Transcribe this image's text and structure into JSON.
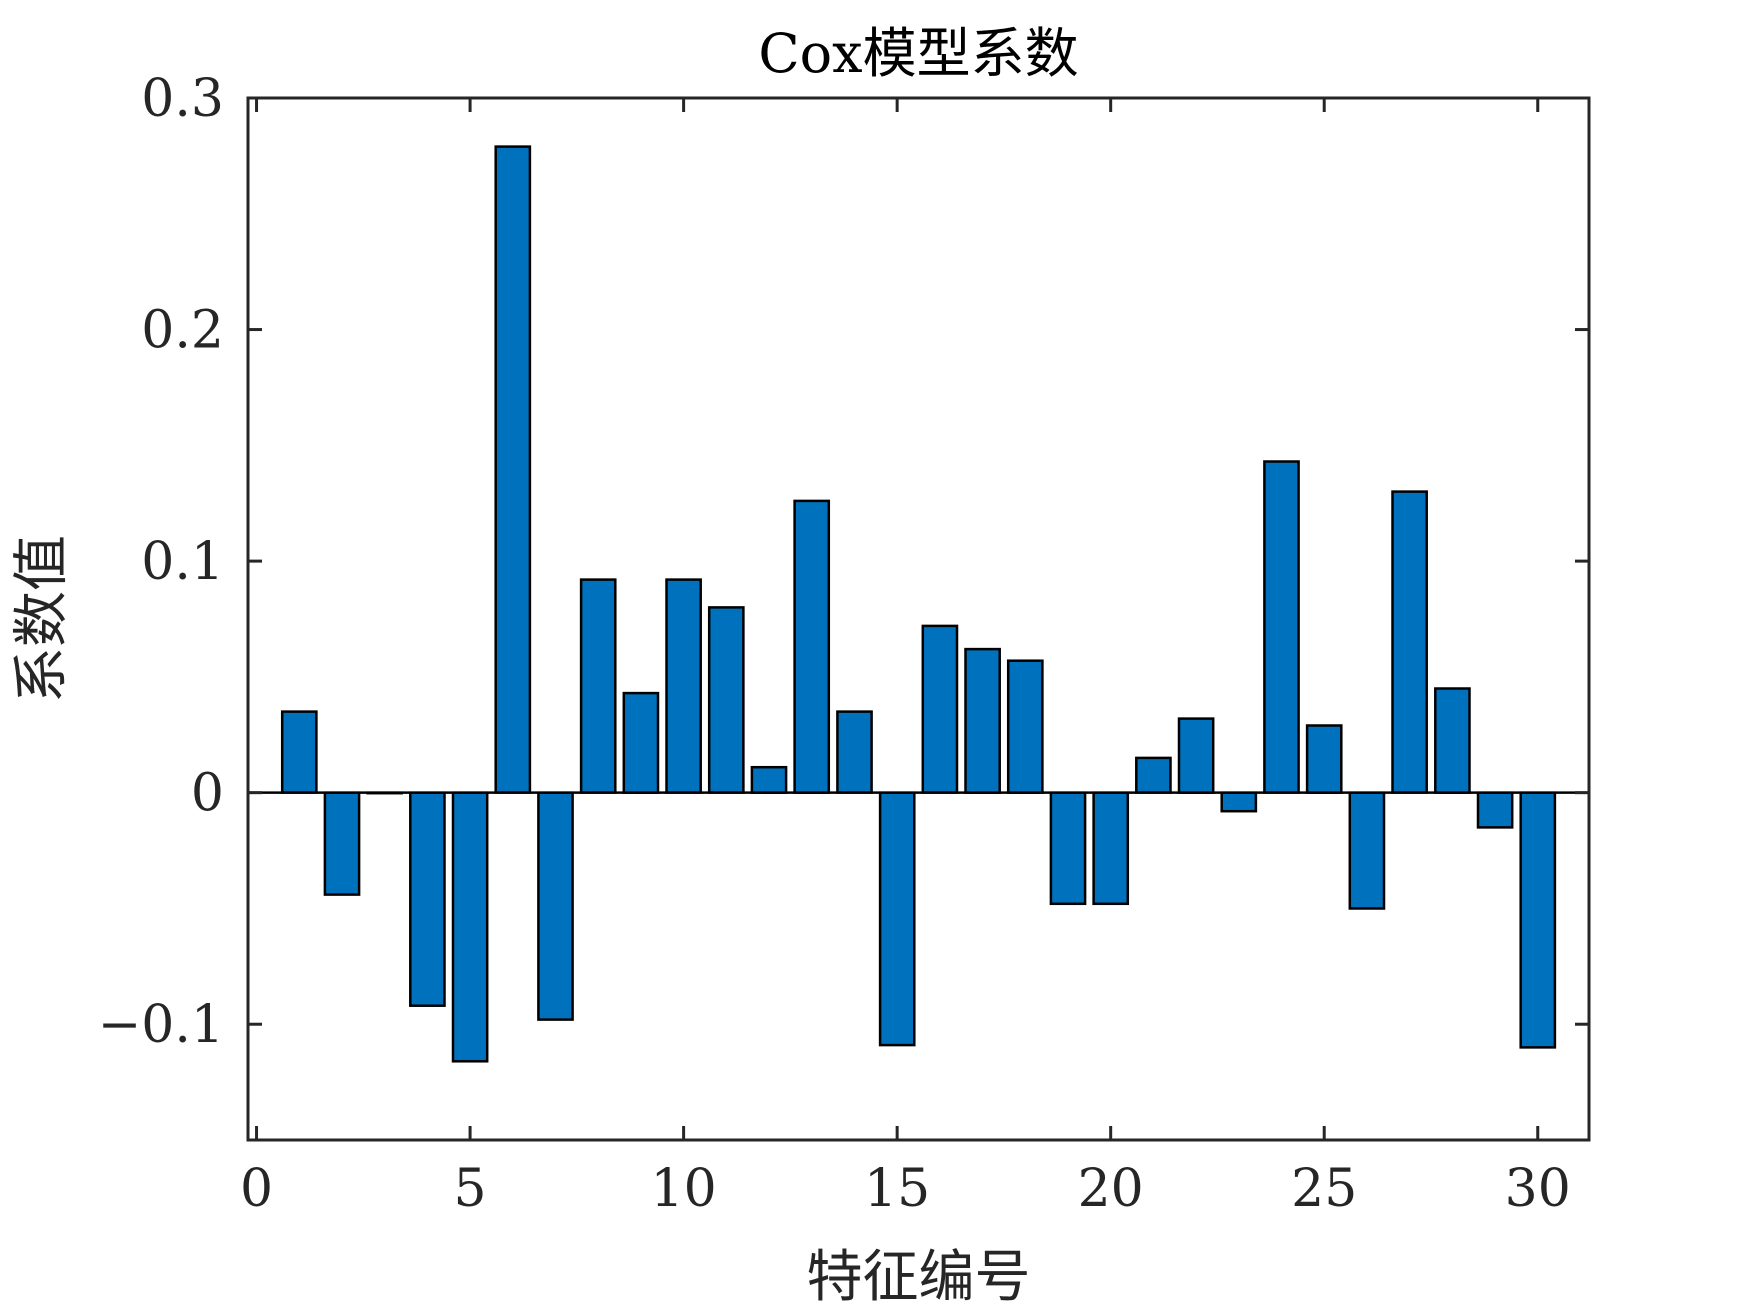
{
  "chart_data": {
    "type": "bar",
    "title": "Cox模型系数",
    "xlabel": "特征编号",
    "ylabel": "系数值",
    "x": [
      1,
      2,
      3,
      4,
      5,
      6,
      7,
      8,
      9,
      10,
      11,
      12,
      13,
      14,
      15,
      16,
      17,
      18,
      19,
      20,
      21,
      22,
      23,
      24,
      25,
      26,
      27,
      28,
      29,
      30
    ],
    "values": [
      0.035,
      -0.044,
      0.0,
      -0.092,
      -0.116,
      0.279,
      -0.098,
      0.092,
      0.043,
      0.092,
      0.08,
      0.011,
      0.126,
      0.035,
      -0.109,
      0.072,
      0.062,
      0.057,
      -0.048,
      -0.048,
      0.015,
      0.032,
      -0.008,
      0.143,
      0.029,
      -0.05,
      0.13,
      0.045,
      -0.015,
      -0.11
    ],
    "xlim": [
      -0.2,
      31.2
    ],
    "ylim": [
      -0.15,
      0.3
    ],
    "xticks": [
      0,
      5,
      10,
      15,
      20,
      25,
      30
    ],
    "xtick_labels": [
      "0",
      "5",
      "10",
      "15",
      "20",
      "25",
      "30"
    ],
    "yticks": [
      -0.1,
      0,
      0.1,
      0.2,
      0.3
    ],
    "ytick_labels": [
      "−0.1",
      "0",
      "0.1",
      "0.2",
      "0.3"
    ],
    "bar_color": "#0072BD",
    "edge_color": "#000000",
    "grid": false,
    "legend": "none"
  }
}
